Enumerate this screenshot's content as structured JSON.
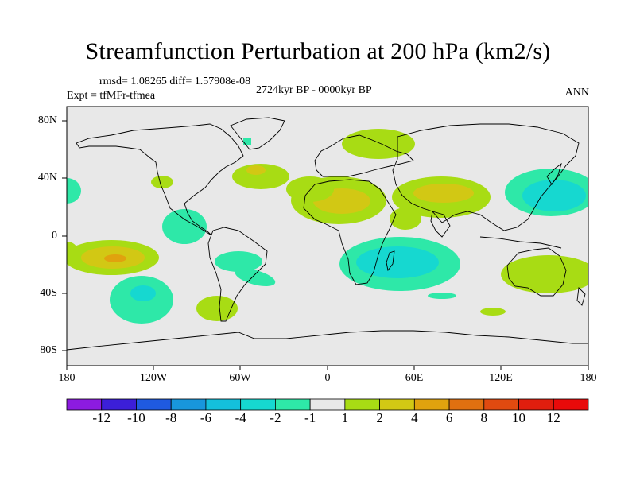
{
  "title": "Streamfunction Perturbation at 200 hPa (km2/s)",
  "stats": "rmsd= 1.08265 diff= 1.57908e-08",
  "experiment": "Expt = tfMFr-tfmea",
  "period": "2724kyr BP - 0000kyr BP",
  "season": "ANN",
  "axes": {
    "x_ticks": [
      "180",
      "120W",
      "60W",
      "0",
      "60E",
      "120E",
      "180"
    ],
    "y_ticks": [
      "80N",
      "40N",
      "0",
      "40S",
      "80S"
    ]
  },
  "colorbar": {
    "labels": [
      "-12",
      "-10",
      "-8",
      "-6",
      "-4",
      "-2",
      "-1",
      "1",
      "2",
      "4",
      "6",
      "8",
      "10",
      "12"
    ],
    "colors": [
      "#8c1be0",
      "#3c1fd8",
      "#1f5ae0",
      "#1896dc",
      "#14c0dc",
      "#16d8d0",
      "#2ee8a8",
      "#e8e8e8",
      "#a8dc14",
      "#d2c814",
      "#e0a20e",
      "#e07010",
      "#e04a10",
      "#e01e0e",
      "#e80a0a"
    ]
  },
  "chart_data": {
    "type": "heatmap",
    "title": "Streamfunction Perturbation at 200 hPa (km2/s)",
    "projection": "cylindrical equidistant",
    "xlim": [
      -180,
      180
    ],
    "ylim": [
      -90,
      90
    ],
    "contour_levels": [
      -12,
      -10,
      -8,
      -6,
      -4,
      -2,
      -1,
      1,
      2,
      4,
      6,
      8,
      10,
      12
    ],
    "features": [
      {
        "sign": "negative",
        "lon": 45,
        "lat": -20,
        "min_level": -2
      },
      {
        "sign": "negative",
        "lon": 150,
        "lat": 30,
        "min_level": -2
      },
      {
        "sign": "negative",
        "lon": -120,
        "lat": -40,
        "min_level": -2
      },
      {
        "sign": "negative",
        "lon": -48,
        "lat": -22,
        "min_level": -1
      },
      {
        "sign": "negative",
        "lon": -88,
        "lat": 35,
        "min_level": -1
      },
      {
        "sign": "negative",
        "lon": 178,
        "lat": 36,
        "min_level": -1
      },
      {
        "sign": "negative",
        "lon": 5,
        "lat": 66,
        "min_level": -1
      },
      {
        "sign": "positive",
        "lon": -150,
        "lat": -15,
        "max_level": 4
      },
      {
        "sign": "positive",
        "lon": 10,
        "lat": 25,
        "max_level": 2
      },
      {
        "sign": "positive",
        "lon": 75,
        "lat": 27,
        "max_level": 2
      },
      {
        "sign": "positive",
        "lon": -52,
        "lat": 42,
        "max_level": 2
      },
      {
        "sign": "positive",
        "lon": 40,
        "lat": 65,
        "max_level": 1
      },
      {
        "sign": "positive",
        "lon": 150,
        "lat": -22,
        "max_level": 1
      },
      {
        "sign": "positive",
        "lon": -67,
        "lat": -48,
        "max_level": 1
      },
      {
        "sign": "positive",
        "lon": -112,
        "lat": 38,
        "max_level": 1
      }
    ]
  }
}
